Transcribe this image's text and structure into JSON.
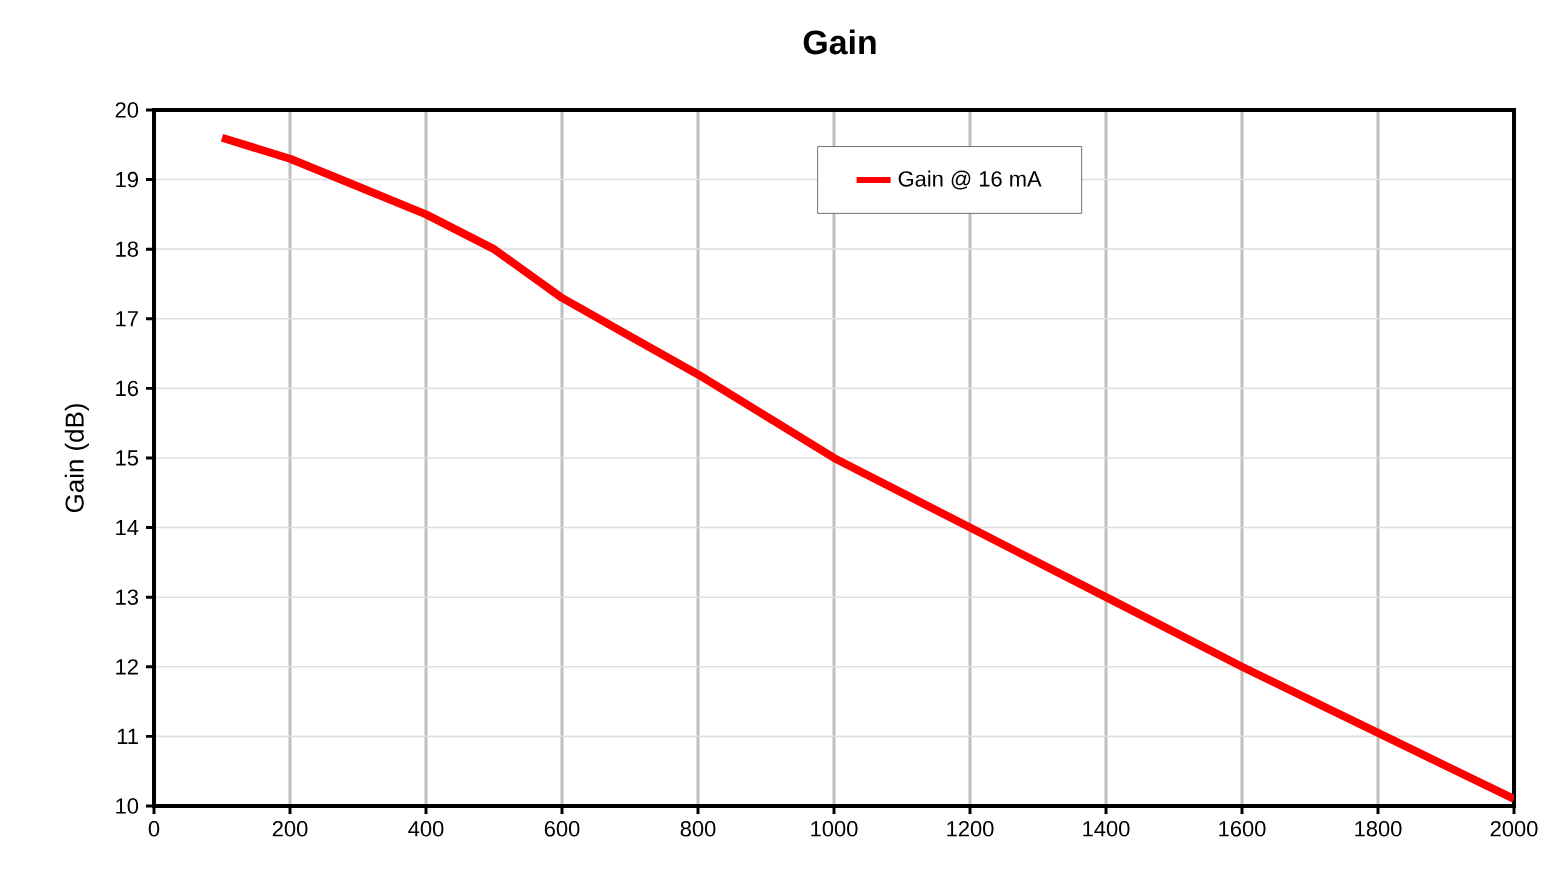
{
  "chart_data": {
    "type": "line",
    "title": "Gain",
    "ylabel": "Gain (dB)",
    "x": [
      100,
      200,
      300,
      400,
      500,
      600,
      700,
      800,
      900,
      1000,
      1200,
      1400,
      1600,
      1800,
      2000
    ],
    "series": [
      {
        "name": "Gain @  16 mA",
        "color": "#ff0000",
        "values": [
          19.6,
          19.3,
          18.9,
          18.5,
          18.0,
          17.3,
          16.75,
          16.2,
          15.6,
          15.0,
          14.0,
          13.0,
          12.0,
          11.05,
          10.1
        ]
      }
    ],
    "xlim": [
      0,
      2000
    ],
    "xticks": [
      0,
      200,
      400,
      600,
      800,
      1000,
      1200,
      1400,
      1600,
      1800,
      2000
    ],
    "ylim": [
      10,
      20
    ],
    "yticks": [
      10,
      11,
      12,
      13,
      14,
      15,
      16,
      17,
      18,
      19,
      20
    ],
    "grid": true,
    "legend": "top",
    "marker": "none",
    "line_style": "solid"
  }
}
